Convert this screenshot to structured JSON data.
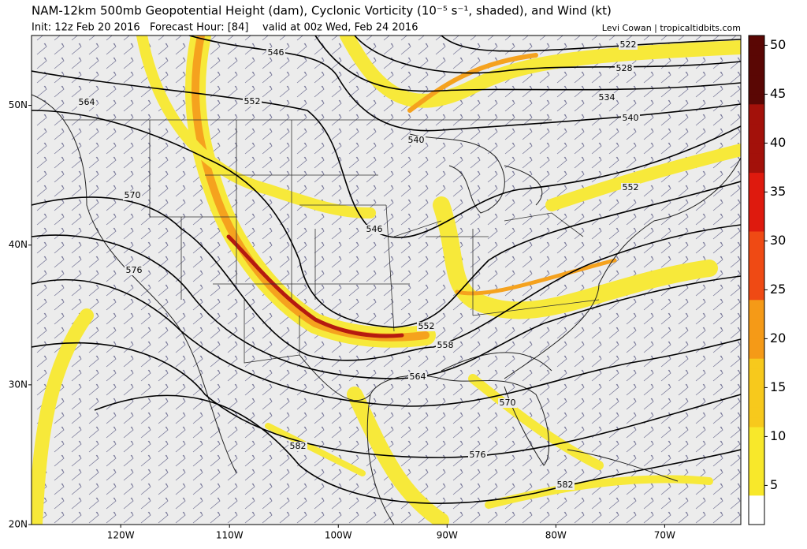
{
  "header": {
    "title": "NAM-12km 500mb Geopotential Height (dam), Cyclonic Vorticity (10⁻⁵ s⁻¹, shaded), and Wind (kt)",
    "init": "Init: 12z Feb 20 2016",
    "forecast_hour": "Forecast Hour: [84]",
    "valid": "valid at 00z Wed, Feb 24 2016",
    "credit": "Levi Cowan | tropicaltidbits.com"
  },
  "map": {
    "lat_lim": [
      20,
      55
    ],
    "lon_lim": [
      -128.2,
      -63
    ],
    "lat_ticks": [
      {
        "value": 50,
        "label": "50N"
      },
      {
        "value": 40,
        "label": "40N"
      },
      {
        "value": 30,
        "label": "30N"
      },
      {
        "value": 20,
        "label": "20N"
      }
    ],
    "lon_ticks": [
      {
        "value": -120,
        "label": "120W"
      },
      {
        "value": -110,
        "label": "110W"
      },
      {
        "value": -100,
        "label": "100W"
      },
      {
        "value": -90,
        "label": "90W"
      },
      {
        "value": -80,
        "label": "80W"
      },
      {
        "value": -70,
        "label": "70W"
      }
    ],
    "contour_labels": [
      522,
      528,
      534,
      540,
      540,
      546,
      552,
      546,
      552,
      552,
      558,
      564,
      564,
      570,
      570,
      576,
      576,
      582,
      582
    ]
  },
  "colorbar": {
    "lim": [
      1,
      51
    ],
    "ticks": [
      5,
      10,
      15,
      20,
      25,
      30,
      35,
      40,
      45,
      50
    ]
  }
}
